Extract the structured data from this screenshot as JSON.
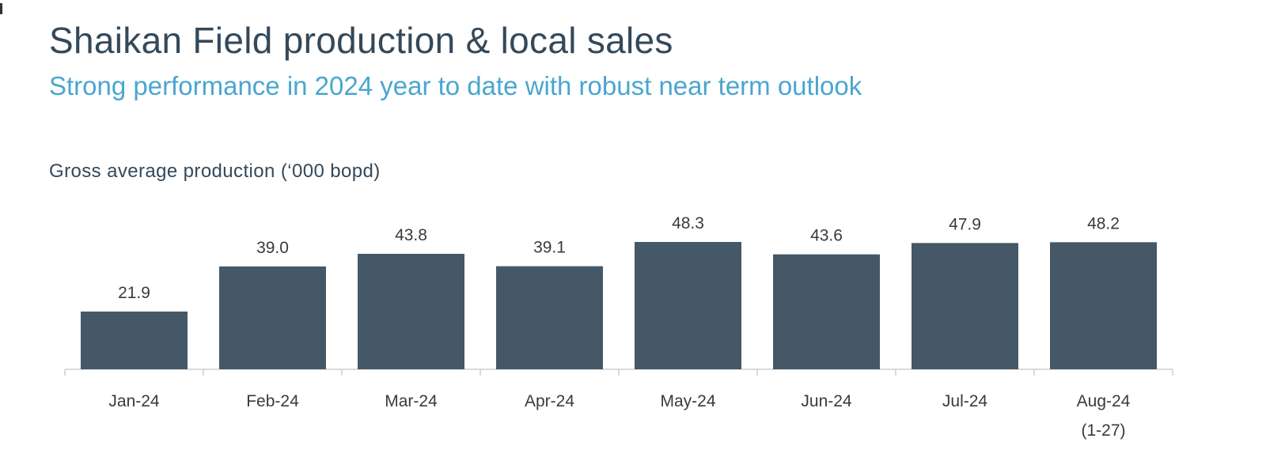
{
  "page": {
    "title": "Shaikan Field production & local sales",
    "subtitle": "Strong performance in 2024 year to date with robust near term outlook"
  },
  "colors": {
    "title": "#34495a",
    "subtitle": "#4aa6cf",
    "bar": "#445868",
    "axis": "#cfcfcf",
    "text": "#3a3a3a"
  },
  "chart_data": {
    "type": "bar",
    "title": "Gross average production (‘000 bopd)",
    "categories": [
      "Jan-24",
      "Feb-24",
      "Mar-24",
      "Apr-24",
      "May-24",
      "Jun-24",
      "Jul-24",
      "Aug-24\n(1-27)"
    ],
    "values": [
      21.9,
      39.0,
      43.8,
      39.1,
      48.3,
      43.6,
      47.9,
      48.2
    ],
    "data_labels": [
      "21.9",
      "39.0",
      "43.8",
      "39.1",
      "48.3",
      "43.6",
      "47.9",
      "48.2"
    ],
    "xlabel": "",
    "ylabel": "",
    "ylim": [
      0,
      48.3
    ],
    "grid": false,
    "legend": "none"
  }
}
